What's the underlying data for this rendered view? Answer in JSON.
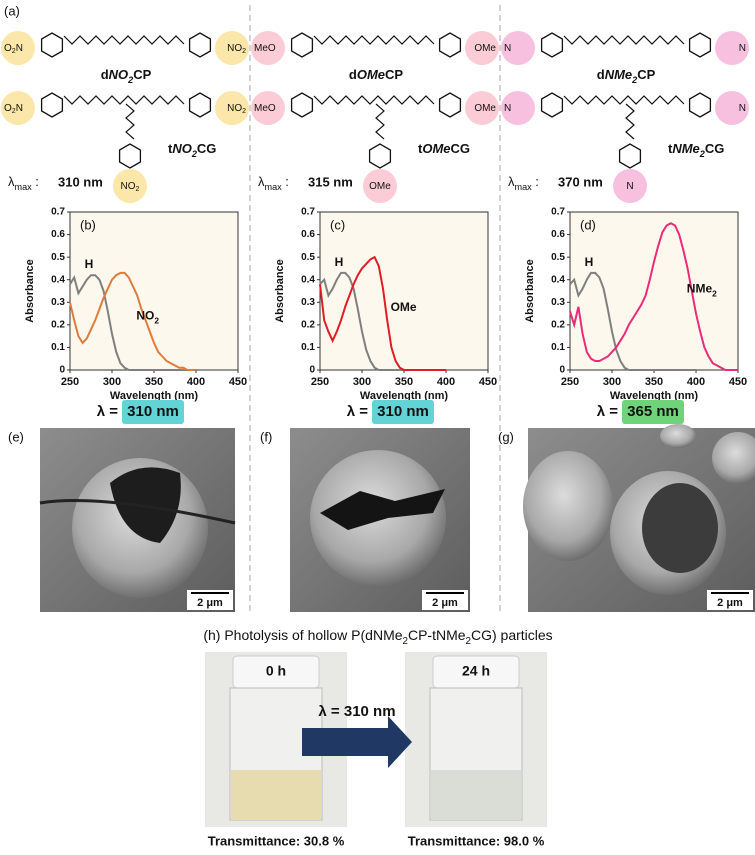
{
  "panel_a": {
    "label": "(a)",
    "lambda_label": "λmax :",
    "columns": [
      {
        "left": "O2N",
        "right": "NO2",
        "dimer": "dNO2CP",
        "trimer": "tNO2CG",
        "bottom": "NO2",
        "lambda_max": "310 nm",
        "highlight": "#f7d463"
      },
      {
        "left": "MeO",
        "right": "OMe",
        "dimer": "dOMeCP",
        "trimer": "tOMeCG",
        "bottom": "OMe",
        "lambda_max": "315 nm",
        "highlight": "#f7a3b3"
      },
      {
        "left": "N",
        "right": "N",
        "dimer": "dNMe2CP",
        "trimer": "tNMe2CG",
        "bottom": "N",
        "lambda_max": "370 nm",
        "highlight": "#f38cc4"
      }
    ]
  },
  "chart_data": [
    {
      "type": "line",
      "panel_label": "(b)",
      "x_label": "Wavelength (nm)",
      "y_label": "Absorbance",
      "xlim": [
        250,
        450
      ],
      "xticks": [
        250,
        300,
        350,
        400,
        450
      ],
      "ylim": [
        0,
        0.7
      ],
      "yticks": [
        0,
        0.1,
        0.2,
        0.3,
        0.4,
        0.5,
        0.6,
        0.7
      ],
      "x": [
        250,
        255,
        260,
        265,
        270,
        275,
        280,
        285,
        290,
        295,
        300,
        305,
        310,
        315,
        320,
        325,
        330,
        335,
        340,
        345,
        350,
        355,
        360,
        365,
        370,
        375,
        380,
        385,
        390,
        395,
        400
      ],
      "series": [
        {
          "name": "H",
          "color": "#7f7f7f",
          "values": [
            0.38,
            0.41,
            0.34,
            0.37,
            0.4,
            0.42,
            0.42,
            0.4,
            0.35,
            0.26,
            0.16,
            0.08,
            0.03,
            0.01,
            0,
            0,
            0,
            0,
            0,
            0,
            0,
            0,
            0,
            0,
            0,
            0,
            0,
            0,
            0,
            0,
            0
          ]
        },
        {
          "name": "NO2",
          "color": "#e07b39",
          "values": [
            0.3,
            0.22,
            0.15,
            0.12,
            0.14,
            0.18,
            0.22,
            0.27,
            0.32,
            0.36,
            0.4,
            0.42,
            0.43,
            0.43,
            0.41,
            0.37,
            0.33,
            0.27,
            0.22,
            0.17,
            0.12,
            0.08,
            0.06,
            0.04,
            0.03,
            0.02,
            0.01,
            0.01,
            0,
            0,
            0
          ]
        }
      ]
    },
    {
      "type": "line",
      "panel_label": "(c)",
      "x_label": "Wavelength (nm)",
      "y_label": "Absorbance",
      "xlim": [
        250,
        450
      ],
      "xticks": [
        250,
        300,
        350,
        400,
        450
      ],
      "ylim": [
        0,
        0.7
      ],
      "yticks": [
        0,
        0.1,
        0.2,
        0.3,
        0.4,
        0.5,
        0.6,
        0.7
      ],
      "x": [
        250,
        255,
        260,
        265,
        270,
        275,
        280,
        285,
        290,
        295,
        300,
        305,
        310,
        315,
        320,
        325,
        330,
        335,
        340,
        345,
        350,
        355,
        360,
        365,
        370,
        375,
        380,
        385,
        390,
        395,
        400
      ],
      "series": [
        {
          "name": "H",
          "color": "#7f7f7f",
          "values": [
            0.38,
            0.4,
            0.33,
            0.36,
            0.4,
            0.43,
            0.43,
            0.41,
            0.36,
            0.27,
            0.17,
            0.09,
            0.04,
            0.01,
            0,
            0,
            0,
            0,
            0,
            0,
            0,
            0,
            0,
            0,
            0,
            0,
            0,
            0,
            0,
            0,
            0
          ]
        },
        {
          "name": "OMe",
          "color": "#e31b23",
          "values": [
            0.38,
            0.22,
            0.17,
            0.13,
            0.17,
            0.22,
            0.28,
            0.33,
            0.38,
            0.42,
            0.45,
            0.47,
            0.49,
            0.5,
            0.46,
            0.36,
            0.22,
            0.1,
            0.04,
            0.01,
            0,
            0,
            0,
            0,
            0,
            0,
            0,
            0,
            0,
            0,
            0
          ]
        }
      ]
    },
    {
      "type": "line",
      "panel_label": "(d)",
      "x_label": "Wavelength (nm)",
      "y_label": "Absorbance",
      "xlim": [
        250,
        450
      ],
      "xticks": [
        250,
        300,
        350,
        400,
        450
      ],
      "ylim": [
        0,
        0.7
      ],
      "yticks": [
        0,
        0.1,
        0.2,
        0.3,
        0.4,
        0.5,
        0.6,
        0.7
      ],
      "x": [
        250,
        255,
        260,
        265,
        270,
        275,
        280,
        285,
        290,
        295,
        300,
        305,
        310,
        315,
        320,
        325,
        330,
        335,
        340,
        345,
        350,
        355,
        360,
        365,
        370,
        375,
        380,
        385,
        390,
        395,
        400,
        405,
        410,
        415,
        420,
        425,
        430,
        435,
        440,
        445,
        450
      ],
      "series": [
        {
          "name": "H",
          "color": "#7f7f7f",
          "values": [
            0.38,
            0.4,
            0.33,
            0.36,
            0.4,
            0.43,
            0.43,
            0.41,
            0.36,
            0.27,
            0.17,
            0.09,
            0.04,
            0.01,
            0,
            0,
            0,
            0,
            0,
            0,
            0,
            0,
            0,
            0,
            0,
            0,
            0,
            0,
            0,
            0,
            0,
            null,
            null,
            null,
            null,
            null,
            null,
            null,
            null,
            null,
            null
          ]
        },
        {
          "name": "NMe2",
          "color": "#ec2a78",
          "values": [
            0.26,
            0.2,
            0.28,
            0.16,
            0.08,
            0.05,
            0.04,
            0.04,
            0.05,
            0.06,
            0.08,
            0.1,
            0.13,
            0.16,
            0.2,
            0.23,
            0.26,
            0.29,
            0.33,
            0.4,
            0.48,
            0.55,
            0.61,
            0.64,
            0.65,
            0.64,
            0.6,
            0.53,
            0.45,
            0.35,
            0.25,
            0.17,
            0.1,
            0.06,
            0.03,
            0.02,
            0.01,
            0,
            0,
            0,
            0
          ]
        }
      ]
    }
  ],
  "irradiation": [
    {
      "label": "λ =",
      "wavelength": "310 nm",
      "color": "#63d4d6"
    },
    {
      "label": "λ =",
      "wavelength": "310 nm",
      "color": "#63d4d6"
    },
    {
      "label": "λ =",
      "wavelength": "365 nm",
      "color": "#6fd37a"
    }
  ],
  "sem": [
    {
      "label": "(e)",
      "scale": "2 μm"
    },
    {
      "label": "(f)",
      "scale": "2 μm"
    },
    {
      "label": "(g)",
      "scale": "2 μm"
    }
  ],
  "panel_h": {
    "title": "(h) Photolysis of hollow P(dNMe2CP-tNMe2CG) particles",
    "arrow_label": "λ = 310 nm",
    "vials": [
      {
        "time": "0 h",
        "transmittance": "Transmittance: 30.8 %",
        "liquid": "#e6dcb0"
      },
      {
        "time": "24 h",
        "transmittance": "Transmittance: 98.0 %",
        "liquid": "#d9ddd6"
      }
    ]
  }
}
